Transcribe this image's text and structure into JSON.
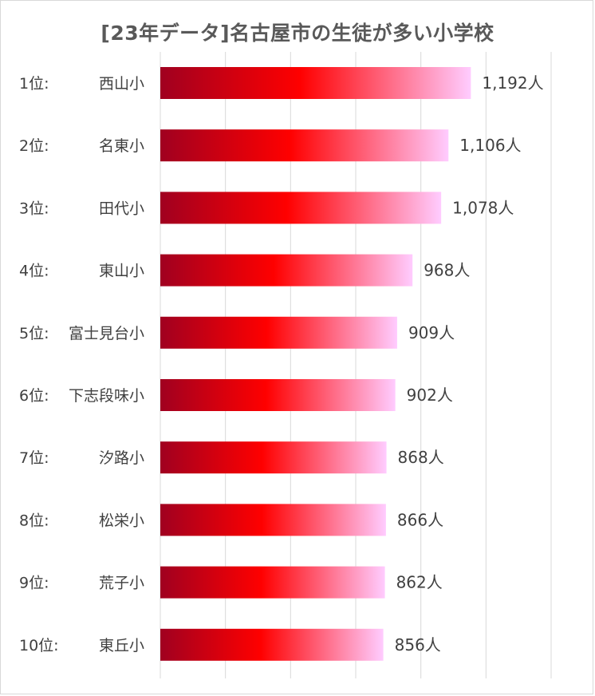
{
  "chart_data": {
    "type": "bar",
    "orientation": "horizontal",
    "title": "[23年データ]名古屋市の生徒が多い小学校",
    "categories": [
      {
        "rank": "1位:",
        "school": "西山小"
      },
      {
        "rank": "2位:",
        "school": "名東小"
      },
      {
        "rank": "3位:",
        "school": "田代小"
      },
      {
        "rank": "4位:",
        "school": "東山小"
      },
      {
        "rank": "5位:",
        "school": "富士見台小"
      },
      {
        "rank": "6位:",
        "school": "下志段味小"
      },
      {
        "rank": "7位:",
        "school": "汐路小"
      },
      {
        "rank": "8位:",
        "school": "松栄小"
      },
      {
        "rank": "9位:",
        "school": "荒子小"
      },
      {
        "rank": "10位:",
        "school": "東丘小"
      }
    ],
    "values": [
      1192,
      1106,
      1078,
      968,
      909,
      902,
      868,
      866,
      862,
      856
    ],
    "value_labels": [
      "1,192人",
      "1,106人",
      "1,078人",
      "968人",
      "909人",
      "902人",
      "868人",
      "866人",
      "862人",
      "856人"
    ],
    "unit": "人",
    "xlim": [
      0,
      1500
    ],
    "gridlines": [
      0,
      250,
      500,
      750,
      1000,
      1250,
      1500
    ],
    "grid": true,
    "legend": "none",
    "bar_gradient": [
      "#a00020",
      "#ff0000",
      "#ffccff"
    ]
  }
}
